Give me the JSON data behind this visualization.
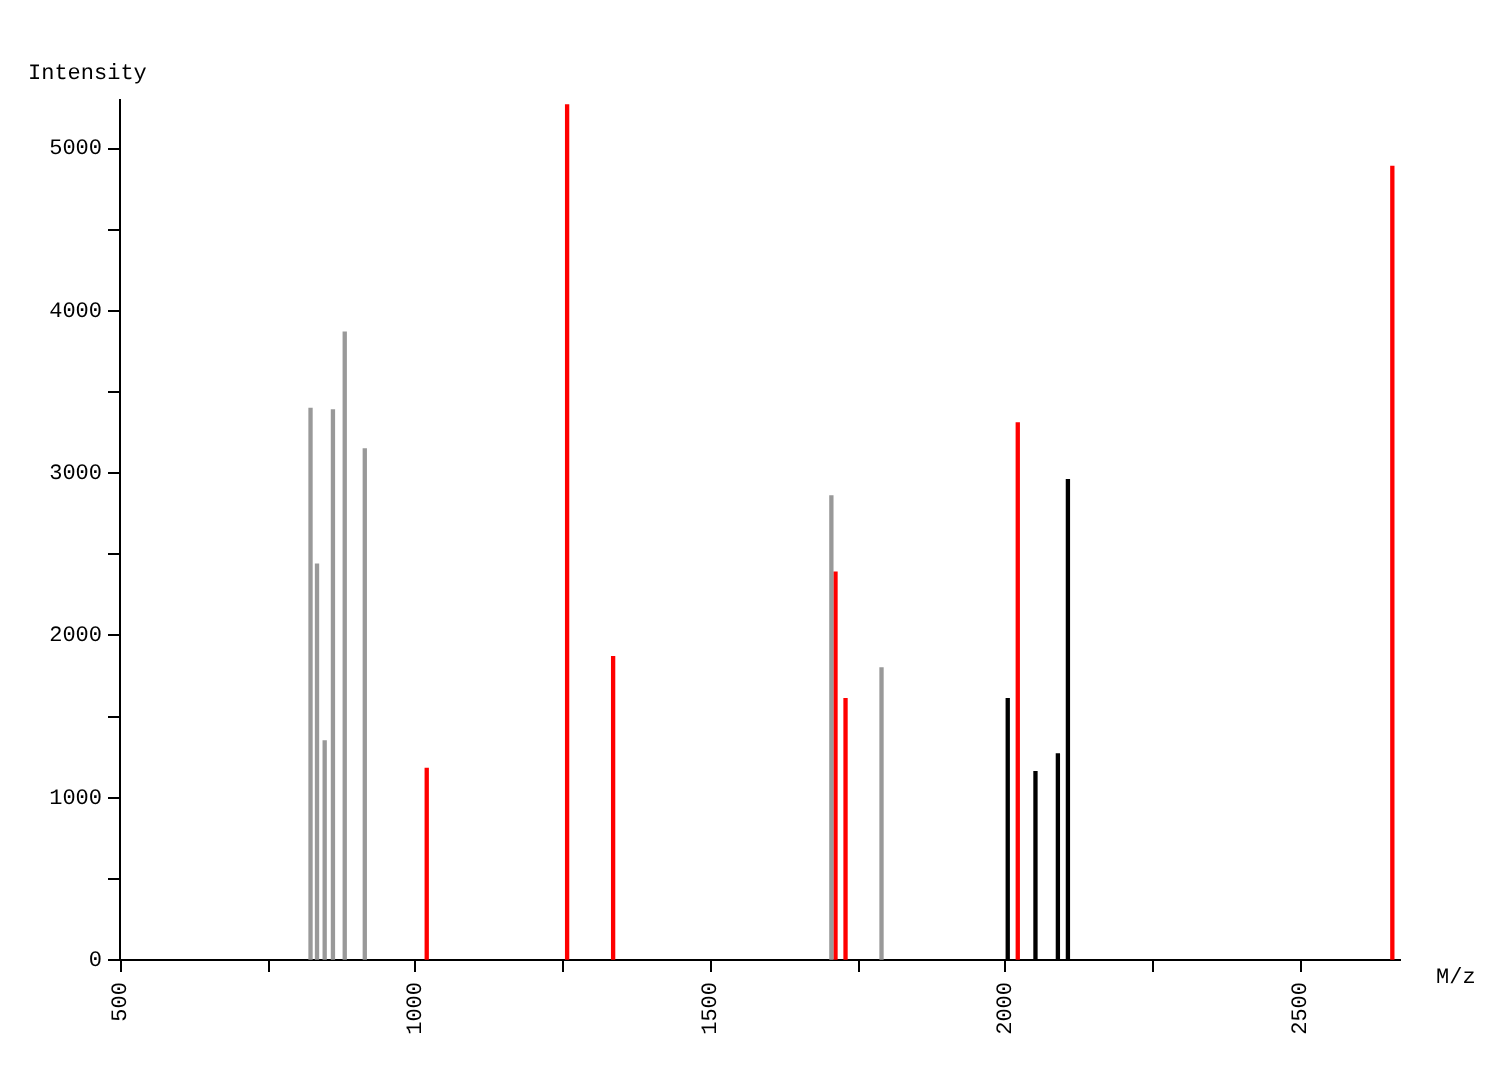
{
  "chart_data": {
    "type": "bar",
    "xlabel": "M/z",
    "ylabel": "Intensity",
    "xlim": [
      500,
      2670
    ],
    "ylim": [
      0,
      5300
    ],
    "xticks": [
      500,
      {
        "value": 750,
        "label": null
      },
      1000,
      {
        "value": 1250,
        "label": null
      },
      1500,
      {
        "value": 1750,
        "label": null
      },
      2000,
      {
        "value": 2250,
        "label": null
      },
      2500
    ],
    "yticks": [
      0,
      {
        "value": 500,
        "label": null
      },
      1000,
      {
        "value": 1500,
        "label": null
      },
      2000,
      {
        "value": 2500,
        "label": null
      },
      3000,
      {
        "value": 3500,
        "label": null
      },
      4000,
      {
        "value": 4500,
        "label": null
      },
      5000
    ],
    "series": [
      {
        "color": "#999999",
        "x": [
          823,
          834,
          847,
          861,
          881,
          915,
          1706,
          1791
        ],
        "values": [
          3400,
          2440,
          1350,
          3390,
          3870,
          3150,
          2860,
          1800
        ]
      },
      {
        "color": "#ff0000",
        "x": [
          1020,
          1258,
          1336,
          1713,
          1730,
          2022,
          2657
        ],
        "values": [
          1180,
          5270,
          1870,
          2390,
          1610,
          3310,
          4890
        ]
      },
      {
        "color": "#000000",
        "x": [
          2005,
          2052,
          2090,
          2107
        ],
        "values": [
          1610,
          1160,
          1270,
          2960
        ]
      }
    ],
    "grid": false,
    "legend": false
  }
}
